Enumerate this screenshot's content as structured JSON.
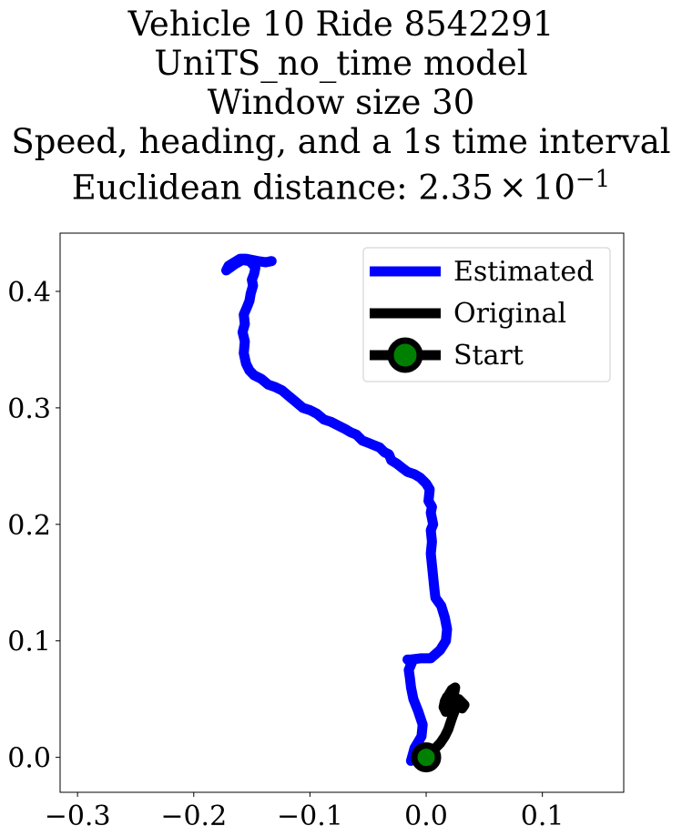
{
  "chart_data": {
    "type": "line",
    "title_lines": [
      "Vehicle 10 Ride 8542291",
      "UniTS_no_time model",
      "Window size 30",
      "Speed, heading, and a 1s time interval"
    ],
    "title_distance_prefix": "Euclidean distance: ",
    "title_distance_mantissa": "2.35",
    "title_distance_times": "×",
    "title_distance_base": "10",
    "title_distance_exponent": "−1",
    "xlabel": "",
    "ylabel": "",
    "xlim": [
      -0.315,
      0.17
    ],
    "ylim": [
      -0.03,
      0.45
    ],
    "xticks": [
      {
        "value": -0.3,
        "label": "−0.3"
      },
      {
        "value": -0.2,
        "label": "−0.2"
      },
      {
        "value": -0.1,
        "label": "−0.1"
      },
      {
        "value": 0.0,
        "label": "0.0"
      },
      {
        "value": 0.1,
        "label": "0.1"
      }
    ],
    "yticks": [
      {
        "value": 0.0,
        "label": "0.0"
      },
      {
        "value": 0.1,
        "label": "0.1"
      },
      {
        "value": 0.2,
        "label": "0.2"
      },
      {
        "value": 0.3,
        "label": "0.3"
      },
      {
        "value": 0.4,
        "label": "0.4"
      }
    ],
    "grid": false,
    "legend_position": "top-right",
    "series": [
      {
        "name": "Estimated",
        "color": "#0000ff",
        "x": [
          -0.013,
          -0.01,
          -0.004,
          -0.003,
          -0.007,
          -0.011,
          -0.013,
          -0.014,
          -0.015,
          -0.012,
          -0.015,
          -0.016,
          -0.013,
          -0.005,
          0.004,
          0.012,
          0.017,
          0.018,
          0.016,
          0.013,
          0.008,
          0.007,
          0.006,
          0.005,
          0.004,
          0.005,
          0.004,
          0.006,
          0.004,
          0.005,
          0.002,
          0.003,
          0.0,
          -0.005,
          -0.01,
          -0.016,
          -0.02,
          -0.025,
          -0.03,
          -0.032,
          -0.036,
          -0.04,
          -0.045,
          -0.05,
          -0.055,
          -0.06,
          -0.065,
          -0.07,
          -0.076,
          -0.082,
          -0.088,
          -0.094,
          -0.1,
          -0.106,
          -0.112,
          -0.118,
          -0.124,
          -0.13,
          -0.136,
          -0.142,
          -0.148,
          -0.152,
          -0.155,
          -0.157,
          -0.156,
          -0.158,
          -0.156,
          -0.157,
          -0.154,
          -0.152,
          -0.151,
          -0.149,
          -0.15,
          -0.148,
          -0.147,
          -0.149,
          -0.152,
          -0.158,
          -0.165,
          -0.172,
          -0.17,
          -0.165,
          -0.16,
          -0.155,
          -0.15,
          -0.145,
          -0.138,
          -0.133
        ],
        "y": [
          -0.003,
          0.008,
          0.018,
          0.028,
          0.04,
          0.05,
          0.06,
          0.068,
          0.075,
          0.082,
          0.083,
          0.084,
          0.084,
          0.085,
          0.085,
          0.092,
          0.1,
          0.11,
          0.12,
          0.13,
          0.137,
          0.145,
          0.155,
          0.165,
          0.175,
          0.185,
          0.195,
          0.2,
          0.21,
          0.215,
          0.22,
          0.23,
          0.235,
          0.24,
          0.243,
          0.245,
          0.248,
          0.252,
          0.255,
          0.26,
          0.262,
          0.266,
          0.268,
          0.27,
          0.272,
          0.277,
          0.279,
          0.282,
          0.285,
          0.288,
          0.29,
          0.295,
          0.298,
          0.3,
          0.305,
          0.31,
          0.315,
          0.318,
          0.32,
          0.325,
          0.328,
          0.332,
          0.338,
          0.347,
          0.357,
          0.365,
          0.372,
          0.38,
          0.387,
          0.392,
          0.398,
          0.405,
          0.41,
          0.415,
          0.42,
          0.423,
          0.426,
          0.427,
          0.423,
          0.418,
          0.422,
          0.425,
          0.428,
          0.428,
          0.427,
          0.426,
          0.425,
          0.426
        ]
      },
      {
        "name": "Original",
        "color": "#000000",
        "x": [
          0.0,
          0.006,
          0.012,
          0.016,
          0.019,
          0.021,
          0.023,
          0.025,
          0.027,
          0.028,
          0.03,
          0.033,
          0.031,
          0.027,
          0.024,
          0.021,
          0.018,
          0.016,
          0.015,
          0.017,
          0.02,
          0.022,
          0.024,
          0.025,
          0.022,
          0.019
        ],
        "y": [
          0.0,
          0.006,
          0.012,
          0.018,
          0.024,
          0.03,
          0.036,
          0.041,
          0.046,
          0.05,
          0.048,
          0.045,
          0.042,
          0.044,
          0.047,
          0.05,
          0.052,
          0.048,
          0.043,
          0.039,
          0.042,
          0.049,
          0.055,
          0.06,
          0.058,
          0.053
        ]
      },
      {
        "name": "Start",
        "color": "#000000",
        "marker_face": "#008000",
        "x": [
          0.0
        ],
        "y": [
          0.0
        ]
      }
    ]
  }
}
